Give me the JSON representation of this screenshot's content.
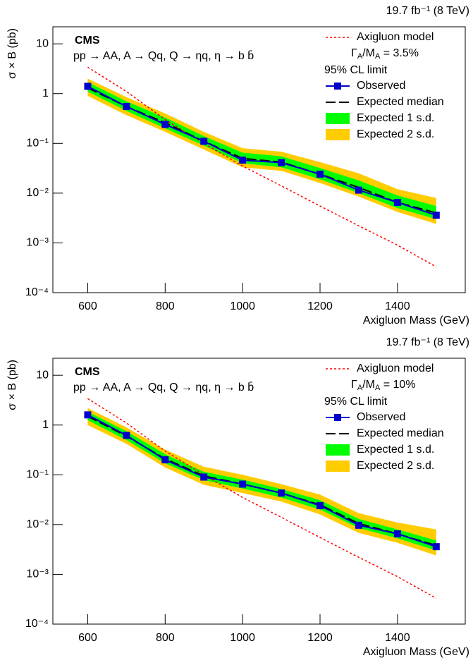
{
  "chart_data": [
    {
      "type": "limit",
      "lumi": "19.7 fb⁻¹ (8 TeV)",
      "experiment": "CMS",
      "subtitle": "pp → AA, A → Qq, Q → ηq, η → b b̄",
      "y_label": "σ × B (pb)",
      "x_label": "Axigluon Mass (GeV)",
      "model_note": [
        "Γ",
        "A",
        "/M",
        "A",
        " = 3.5%"
      ],
      "legend_header": "95% CL limit",
      "log_y": true,
      "xlim": [
        510,
        1575
      ],
      "ylim": [
        0.0001,
        22
      ],
      "xticks": [
        600,
        800,
        1000,
        1200,
        1400
      ],
      "yticks": [
        {
          "value": 0.0001,
          "label": "10⁻⁴"
        },
        {
          "value": 0.001,
          "label": "10⁻³"
        },
        {
          "value": 0.01,
          "label": "10⁻²"
        },
        {
          "value": 0.1,
          "label": "10⁻¹"
        },
        1,
        10
      ],
      "x": [
        600,
        700,
        800,
        900,
        1000,
        1100,
        1200,
        1300,
        1400,
        1500
      ],
      "series": [
        {
          "name": "Axigluon model",
          "color": "#ff0000",
          "style": "dashed",
          "values": [
            3.4,
            1.1,
            0.3,
            0.1,
            0.035,
            0.014,
            0.0055,
            0.0022,
            0.0009,
            0.00033
          ]
        },
        {
          "name": "Observed",
          "color": "#0000cc",
          "style": "markers",
          "values": [
            1.4,
            0.55,
            0.24,
            0.11,
            0.046,
            0.041,
            0.024,
            0.0115,
            0.0065,
            0.0036
          ]
        },
        {
          "name": "Expected median",
          "color": "#000000",
          "style": "longdash",
          "values": [
            1.3,
            0.55,
            0.26,
            0.11,
            0.05,
            0.042,
            0.024,
            0.013,
            0.0065,
            0.004
          ]
        },
        {
          "name": "Expected 1 s.d.",
          "color": "#00ff00",
          "style": "band",
          "low": [
            1.1,
            0.45,
            0.2,
            0.09,
            0.04,
            0.033,
            0.019,
            0.01,
            0.005,
            0.003
          ],
          "high": [
            1.7,
            0.7,
            0.33,
            0.14,
            0.065,
            0.055,
            0.032,
            0.018,
            0.009,
            0.0055
          ]
        },
        {
          "name": "Expected 2 s.d.",
          "color": "#ffcc00",
          "style": "band",
          "low": [
            0.9,
            0.37,
            0.17,
            0.075,
            0.033,
            0.028,
            0.016,
            0.0085,
            0.0042,
            0.0024
          ],
          "high": [
            2.0,
            0.85,
            0.4,
            0.17,
            0.08,
            0.068,
            0.042,
            0.025,
            0.012,
            0.008
          ]
        }
      ]
    },
    {
      "type": "limit",
      "lumi": "19.7 fb⁻¹ (8 TeV)",
      "experiment": "CMS",
      "subtitle": "pp → AA, A → Qq, Q → ηq, η → b b̄",
      "y_label": "σ × B (pb)",
      "x_label": "Axigluon Mass (GeV)",
      "model_note": [
        "Γ",
        "A",
        "/M",
        "A",
        " = 10%"
      ],
      "legend_header": "95% CL limit",
      "log_y": true,
      "xlim": [
        510,
        1575
      ],
      "ylim": [
        0.0001,
        22
      ],
      "xticks": [
        600,
        800,
        1000,
        1200,
        1400
      ],
      "yticks": [
        {
          "value": 0.0001,
          "label": "10⁻⁴"
        },
        {
          "value": 0.001,
          "label": "10⁻³"
        },
        {
          "value": 0.01,
          "label": "10⁻²"
        },
        {
          "value": 0.1,
          "label": "10⁻¹"
        },
        1,
        10
      ],
      "x": [
        600,
        700,
        800,
        900,
        1000,
        1100,
        1200,
        1300,
        1400,
        1500
      ],
      "series": [
        {
          "name": "Axigluon model",
          "color": "#ff0000",
          "style": "dashed",
          "values": [
            3.4,
            1.1,
            0.3,
            0.1,
            0.035,
            0.014,
            0.0055,
            0.0022,
            0.0009,
            0.00033
          ]
        },
        {
          "name": "Observed",
          "color": "#0000cc",
          "style": "markers",
          "values": [
            1.6,
            0.62,
            0.2,
            0.09,
            0.065,
            0.043,
            0.024,
            0.0097,
            0.0065,
            0.0036
          ]
        },
        {
          "name": "Expected median",
          "color": "#000000",
          "style": "longdash",
          "values": [
            1.5,
            0.6,
            0.21,
            0.095,
            0.065,
            0.043,
            0.025,
            0.0105,
            0.0065,
            0.0038
          ]
        },
        {
          "name": "Expected 1 s.d.",
          "color": "#00ff00",
          "style": "band",
          "low": [
            1.25,
            0.5,
            0.17,
            0.078,
            0.053,
            0.035,
            0.02,
            0.0085,
            0.0053,
            0.003
          ],
          "high": [
            1.85,
            0.75,
            0.26,
            0.115,
            0.08,
            0.052,
            0.031,
            0.013,
            0.008,
            0.0048
          ]
        },
        {
          "name": "Expected 2 s.d.",
          "color": "#ffcc00",
          "style": "band",
          "low": [
            1.0,
            0.42,
            0.14,
            0.063,
            0.043,
            0.029,
            0.016,
            0.0068,
            0.0043,
            0.0024
          ],
          "high": [
            2.2,
            0.9,
            0.32,
            0.145,
            0.1,
            0.065,
            0.04,
            0.017,
            0.011,
            0.008
          ]
        }
      ]
    }
  ]
}
